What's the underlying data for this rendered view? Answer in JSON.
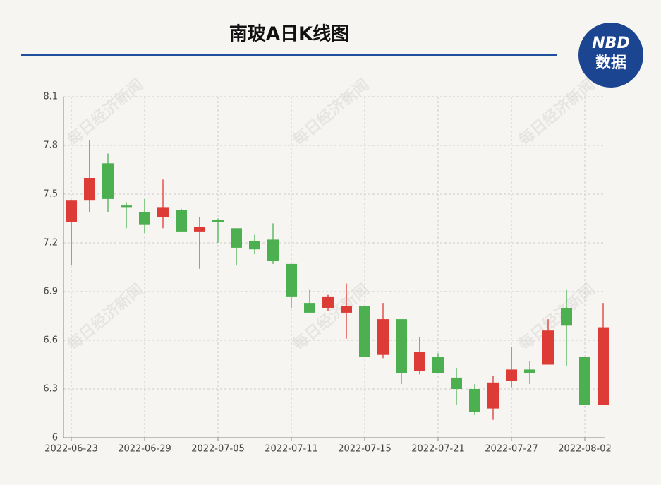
{
  "chart_data": {
    "type": "candlestick",
    "title": "南玻A日K线图",
    "logo": {
      "top": "NBD",
      "bottom": "数据"
    },
    "watermark": "每日经济新闻",
    "categories": [
      "2022-06-23",
      null,
      null,
      null,
      "2022-06-29",
      null,
      null,
      null,
      "2022-07-05",
      null,
      null,
      null,
      "2022-07-11",
      null,
      null,
      null,
      "2022-07-15",
      null,
      null,
      null,
      "2022-07-21",
      null,
      null,
      null,
      "2022-07-27",
      null,
      null,
      null,
      "2022-08-02",
      null
    ],
    "open": [
      7.33,
      7.46,
      7.69,
      7.43,
      7.39,
      7.36,
      7.4,
      7.27,
      7.34,
      7.29,
      7.21,
      7.22,
      7.07,
      6.83,
      6.8,
      6.77,
      6.81,
      6.51,
      6.73,
      6.41,
      6.5,
      6.37,
      6.3,
      6.18,
      6.35,
      6.42,
      6.45,
      6.8,
      6.5,
      6.2
    ],
    "high": [
      7.46,
      7.83,
      7.75,
      7.45,
      7.47,
      7.59,
      7.41,
      7.36,
      7.35,
      7.29,
      7.25,
      7.32,
      7.07,
      6.91,
      6.88,
      6.95,
      6.81,
      6.83,
      6.73,
      6.62,
      6.52,
      6.43,
      6.33,
      6.38,
      6.56,
      6.47,
      6.73,
      6.91,
      6.5,
      6.83
    ],
    "low": [
      7.06,
      7.39,
      7.39,
      7.29,
      7.26,
      7.29,
      7.27,
      7.04,
      7.2,
      7.06,
      7.13,
      7.07,
      6.8,
      6.77,
      6.78,
      6.61,
      6.5,
      6.49,
      6.33,
      6.39,
      6.4,
      6.2,
      6.14,
      6.11,
      6.31,
      6.33,
      6.45,
      6.44,
      6.2,
      6.2
    ],
    "close": [
      7.46,
      7.6,
      7.47,
      7.42,
      7.31,
      7.42,
      7.27,
      7.3,
      7.33,
      7.17,
      7.16,
      7.09,
      6.87,
      6.77,
      6.87,
      6.81,
      6.5,
      6.73,
      6.4,
      6.53,
      6.4,
      6.3,
      6.16,
      6.34,
      6.42,
      6.4,
      6.66,
      6.69,
      6.2,
      6.68
    ],
    "up_color": "#dd3b35",
    "down_color": "#4caf50",
    "ylim": [
      6,
      8.1
    ],
    "yticks": [
      6,
      6.3,
      6.6,
      6.9,
      7.2,
      7.5,
      7.8,
      8.1
    ],
    "grid": true
  }
}
